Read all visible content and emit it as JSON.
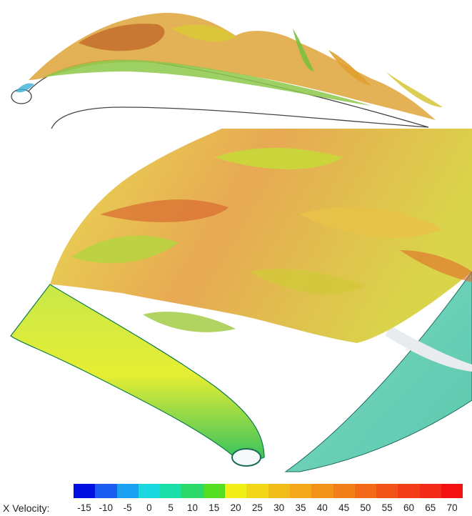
{
  "colorbar": {
    "title": "X Velocity:",
    "ticks": [
      "-15",
      "-10",
      "-5",
      "0",
      "5",
      "10",
      "15",
      "20",
      "25",
      "30",
      "35",
      "40",
      "45",
      "50",
      "55",
      "60",
      "65",
      "70"
    ],
    "colors": [
      "#0010e0",
      "#1a5cf0",
      "#1aa0f0",
      "#1ad7e0",
      "#1ae0a8",
      "#2bd86a",
      "#55dd22",
      "#f2ef18",
      "#f2d818",
      "#f2bd18",
      "#f2a818",
      "#f29318",
      "#f27e18",
      "#f26918",
      "#f25418",
      "#f23f18",
      "#f22a18",
      "#f21010"
    ]
  }
}
